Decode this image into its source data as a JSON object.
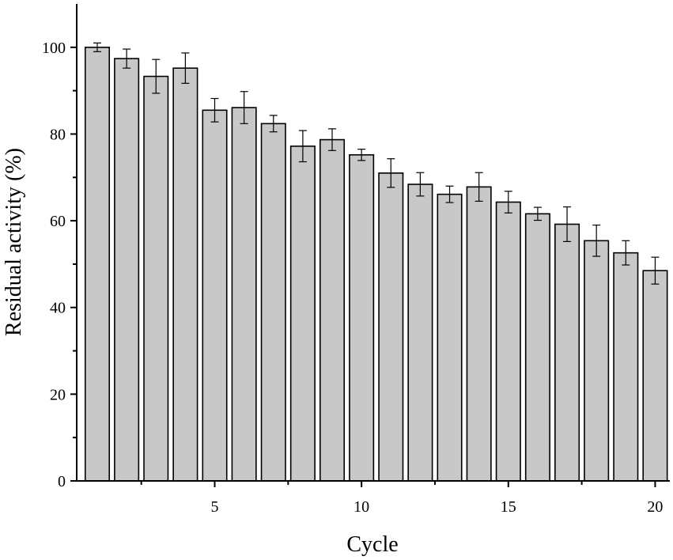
{
  "chart_data": {
    "type": "bar",
    "title": "",
    "xlabel": "Cycle",
    "ylabel": "Residual activity (%)",
    "xlim": [
      0.3,
      20.5
    ],
    "ylim": [
      0,
      110
    ],
    "x_ticks": [
      5,
      10,
      15,
      20
    ],
    "y_ticks": [
      0,
      20,
      40,
      60,
      80,
      100
    ],
    "x_tick_labels": [
      "5",
      "10",
      "15",
      "20"
    ],
    "y_tick_labels": [
      "0",
      "20",
      "40",
      "60",
      "80",
      "100"
    ],
    "grid": false,
    "legend": "none",
    "bar_color": "#c8c8c8",
    "categories": [
      1,
      2,
      3,
      4,
      5,
      6,
      7,
      8,
      9,
      10,
      11,
      12,
      13,
      14,
      15,
      16,
      17,
      18,
      19,
      20
    ],
    "values": [
      100,
      97.4,
      93.3,
      95.2,
      85.5,
      86.1,
      82.4,
      77.2,
      78.7,
      75.2,
      71.0,
      68.4,
      66.1,
      67.8,
      64.3,
      61.6,
      59.2,
      55.4,
      52.6,
      48.5
    ],
    "errors": [
      1.0,
      2.2,
      3.9,
      3.5,
      2.7,
      3.7,
      1.9,
      3.6,
      2.5,
      1.3,
      3.3,
      2.7,
      1.9,
      3.3,
      2.5,
      1.5,
      4.0,
      3.6,
      2.8,
      3.1
    ]
  }
}
